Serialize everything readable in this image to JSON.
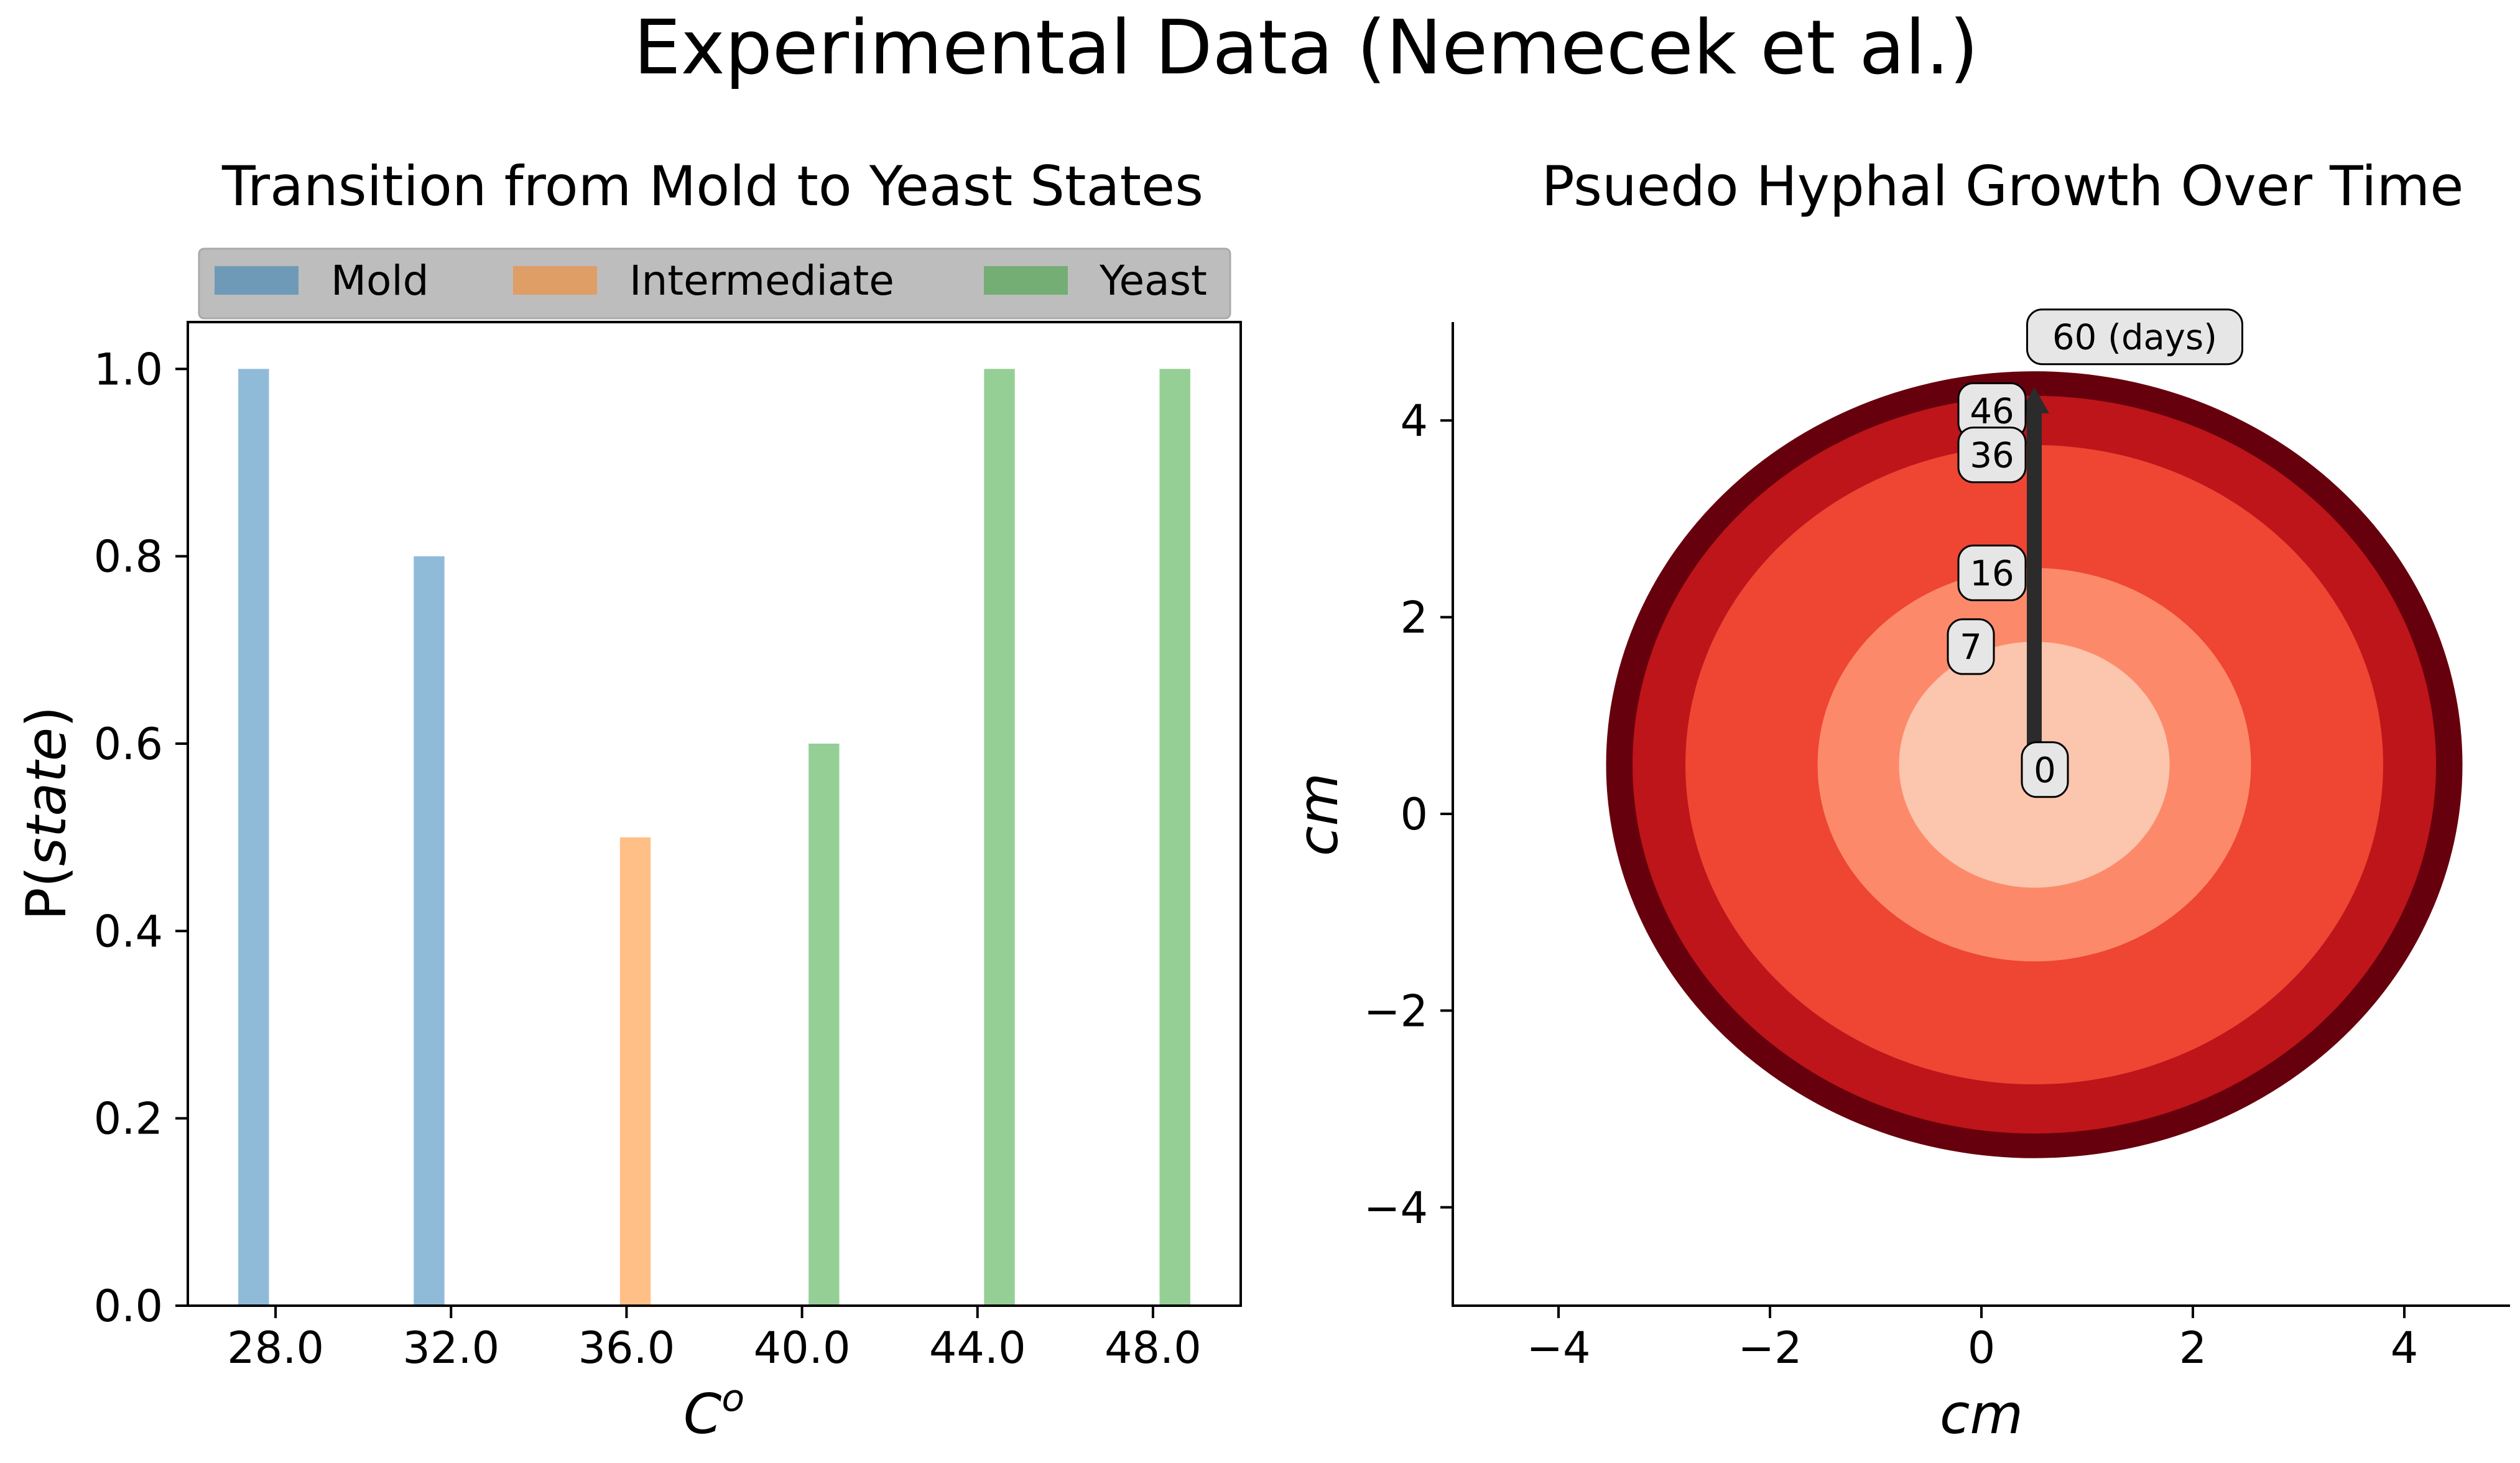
{
  "figure": {
    "title": "Experimental Data (Nemecek et al.)"
  },
  "chart_data": [
    {
      "type": "bar",
      "title": "Transition from Mold to Yeast States",
      "xlabel": "C",
      "xlabel_sup": "o",
      "ylabel_prefix": "P(",
      "ylabel_italic": "state",
      "ylabel_suffix": ")",
      "xlim": [
        26.0,
        50.0
      ],
      "ylim": [
        0.0,
        1.05
      ],
      "xticks": [
        28,
        32,
        36,
        40,
        44,
        48
      ],
      "xtick_labels": [
        "28.0",
        "32.0",
        "36.0",
        "40.0",
        "44.0",
        "48.0"
      ],
      "yticks": [
        0.0,
        0.2,
        0.4,
        0.6,
        0.8,
        1.0
      ],
      "ytick_labels": [
        "0.0",
        "0.2",
        "0.4",
        "0.6",
        "0.8",
        "1.0"
      ],
      "bar_width": 0.7,
      "legend_placement": "top, above axes, 3 columns",
      "series": [
        {
          "name": "Mold",
          "color": "#1f77b4",
          "x": [
            27.5,
            31.5
          ],
          "values": [
            1.0,
            0.8
          ]
        },
        {
          "name": "Intermediate",
          "color": "#ff7f0e",
          "x": [
            36.2
          ],
          "values": [
            0.5
          ]
        },
        {
          "name": "Yeast",
          "color": "#2ca02c",
          "x": [
            40.5,
            44.5,
            48.5
          ],
          "values": [
            0.6,
            1.0,
            1.0
          ]
        }
      ],
      "bar_alpha": 0.5,
      "grid": false
    },
    {
      "type": "area",
      "title": "Psuedo Hyphal Growth Over Time",
      "xlabel": "cm",
      "ylabel": "cm",
      "xlim": [
        -5,
        5
      ],
      "ylim": [
        -5,
        5
      ],
      "xticks": [
        -4,
        -2,
        0,
        2,
        4
      ],
      "xtick_labels": [
        "−4",
        "−2",
        "0",
        "2",
        "4"
      ],
      "yticks": [
        -4,
        -2,
        0,
        2,
        4
      ],
      "ytick_labels": [
        "−4",
        "−2",
        "0",
        "2",
        "4"
      ],
      "center": [
        0.5,
        0.5
      ],
      "grid": false,
      "rings": [
        {
          "day": 60,
          "rx": 4.05,
          "ry": 4.0,
          "color": "#67000d"
        },
        {
          "day": 46,
          "rx": 3.8,
          "ry": 3.75,
          "color": "#bd151a"
        },
        {
          "day": 36,
          "rx": 3.3,
          "ry": 3.25,
          "color": "#ef4533"
        },
        {
          "day": 16,
          "rx": 2.05,
          "ry": 2.0,
          "color": "#fc8a6a"
        },
        {
          "day": 7,
          "rx": 1.28,
          "ry": 1.25,
          "color": "#fcc5ad"
        }
      ],
      "arrow": {
        "x": 0.5,
        "y_start": 0.6,
        "y_end": 4.3,
        "color": "#2b2b2b"
      },
      "annotations": [
        {
          "text": "60 (days)",
          "x": 1.45,
          "y": 4.85
        },
        {
          "text": "46",
          "x": 0.1,
          "y": 4.1
        },
        {
          "text": "36",
          "x": 0.1,
          "y": 3.65
        },
        {
          "text": "16",
          "x": 0.1,
          "y": 2.45
        },
        {
          "text": "7",
          "x": -0.1,
          "y": 1.7
        },
        {
          "text": "0",
          "x": 0.6,
          "y": 0.45
        }
      ]
    }
  ]
}
